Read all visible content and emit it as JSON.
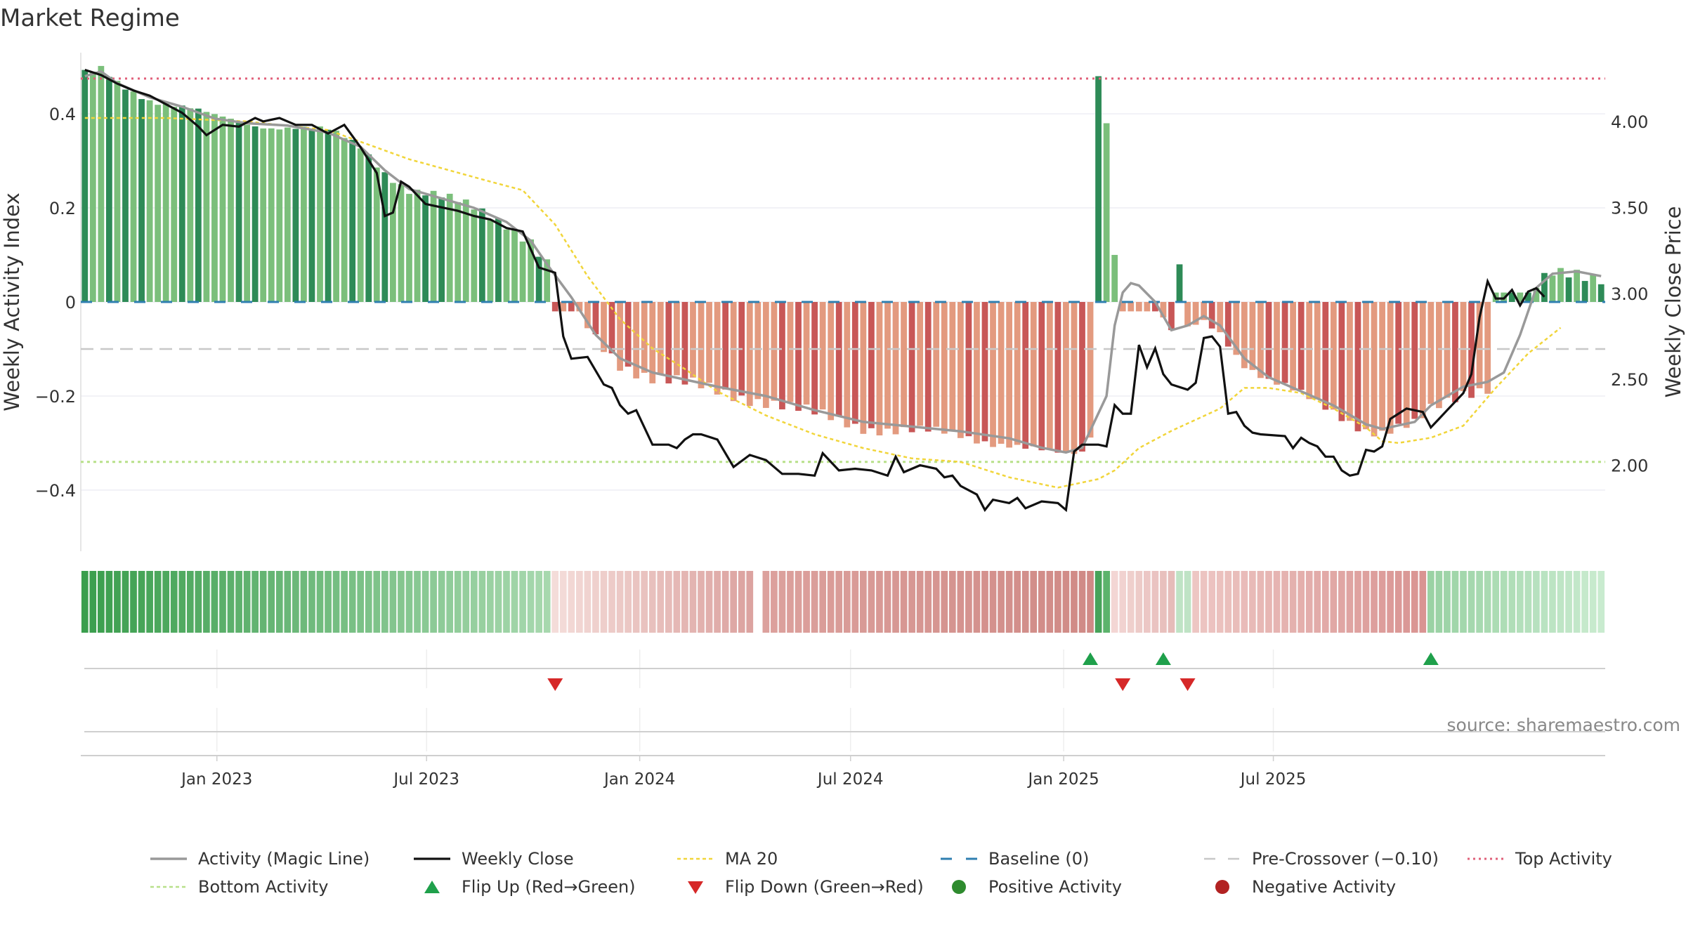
{
  "title": "Market Regime",
  "source": "source: sharemaestro.com",
  "chart_data": {
    "type": "bar",
    "title": "Market Regime",
    "ylabel_left": "Weekly Activity Index",
    "ylabel_right": "Weekly Close Price",
    "ylim_left": [
      -0.53,
      0.53
    ],
    "ylim_right": [
      1.5,
      4.4
    ],
    "yticks_left": [
      0.4,
      0.2,
      0,
      -0.2,
      -0.4
    ],
    "yticks_left_labels": [
      "0.4",
      "0.2",
      "0",
      "−0.2",
      "−0.4"
    ],
    "yticks_right": [
      4.0,
      3.5,
      3.0,
      2.5,
      2.0
    ],
    "yticks_right_labels": [
      "4.00",
      "3.50",
      "3.00",
      "2.50",
      "2.00"
    ],
    "x_range": [
      "2022-09-09",
      "2025-09-19"
    ],
    "xticks": [
      {
        "date": "2023-01-01",
        "label": "Jan 2023"
      },
      {
        "date": "2023-07-01",
        "label": "Jul 2023"
      },
      {
        "date": "2024-01-01",
        "label": "Jan 2024"
      },
      {
        "date": "2024-07-01",
        "label": "Jul 2024"
      },
      {
        "date": "2025-01-01",
        "label": "Jan 2025"
      },
      {
        "date": "2025-07-01",
        "label": "Jul 2025"
      }
    ],
    "reference_lines": {
      "baseline": 0,
      "pre_crossover": -0.1,
      "top_activity": 0.475,
      "bottom_activity": -0.34
    },
    "start_date": "2022-09-09",
    "activity_keypoints": [
      [
        0,
        0.48
      ],
      [
        2,
        0.49
      ],
      [
        4,
        0.465
      ],
      [
        8,
        0.435
      ],
      [
        12,
        0.415
      ],
      [
        16,
        0.39
      ],
      [
        20,
        0.38
      ],
      [
        25,
        0.375
      ],
      [
        30,
        0.36
      ],
      [
        34,
        0.33
      ],
      [
        37,
        0.28
      ],
      [
        40,
        0.24
      ],
      [
        44,
        0.22
      ],
      [
        48,
        0.2
      ],
      [
        52,
        0.17
      ],
      [
        55,
        0.13
      ],
      [
        57,
        0.08
      ],
      [
        60,
        0.01
      ],
      [
        63,
        -0.07
      ],
      [
        66,
        -0.12
      ],
      [
        70,
        -0.15
      ],
      [
        74,
        -0.165
      ],
      [
        78,
        -0.18
      ],
      [
        84,
        -0.2
      ],
      [
        90,
        -0.23
      ],
      [
        96,
        -0.255
      ],
      [
        102,
        -0.265
      ],
      [
        108,
        -0.275
      ],
      [
        114,
        -0.29
      ],
      [
        118,
        -0.31
      ],
      [
        121,
        -0.32
      ],
      [
        123,
        -0.31
      ],
      [
        126,
        -0.2
      ],
      [
        127,
        -0.05
      ],
      [
        128,
        0.02
      ],
      [
        129,
        0.04
      ],
      [
        130,
        0.035
      ],
      [
        132,
        0.0
      ],
      [
        134,
        -0.06
      ],
      [
        136,
        -0.05
      ],
      [
        138,
        -0.03
      ],
      [
        140,
        -0.05
      ],
      [
        143,
        -0.12
      ],
      [
        146,
        -0.16
      ],
      [
        150,
        -0.19
      ],
      [
        154,
        -0.22
      ],
      [
        158,
        -0.26
      ],
      [
        160,
        -0.27
      ],
      [
        164,
        -0.255
      ],
      [
        166,
        -0.22
      ],
      [
        170,
        -0.18
      ],
      [
        173,
        -0.17
      ],
      [
        175,
        -0.15
      ],
      [
        177,
        -0.07
      ],
      [
        179,
        0.03
      ],
      [
        181,
        0.06
      ],
      [
        184,
        0.065
      ],
      [
        187,
        0.055
      ]
    ],
    "close_keypoints": [
      [
        0,
        4.3
      ],
      [
        2,
        4.27
      ],
      [
        4,
        4.22
      ],
      [
        6,
        4.18
      ],
      [
        8,
        4.15
      ],
      [
        10,
        4.1
      ],
      [
        12,
        4.05
      ],
      [
        14,
        3.97
      ],
      [
        15,
        3.92
      ],
      [
        17,
        3.98
      ],
      [
        19,
        3.97
      ],
      [
        21,
        4.02
      ],
      [
        22,
        4.0
      ],
      [
        24,
        4.02
      ],
      [
        26,
        3.98
      ],
      [
        28,
        3.98
      ],
      [
        30,
        3.93
      ],
      [
        32,
        3.98
      ],
      [
        34,
        3.85
      ],
      [
        36,
        3.7
      ],
      [
        37,
        3.45
      ],
      [
        38,
        3.47
      ],
      [
        39,
        3.65
      ],
      [
        40,
        3.62
      ],
      [
        42,
        3.52
      ],
      [
        44,
        3.5
      ],
      [
        46,
        3.48
      ],
      [
        48,
        3.45
      ],
      [
        50,
        3.43
      ],
      [
        52,
        3.38
      ],
      [
        54,
        3.36
      ],
      [
        56,
        3.15
      ],
      [
        58,
        3.12
      ],
      [
        59,
        2.75
      ],
      [
        60,
        2.62
      ],
      [
        62,
        2.63
      ],
      [
        64,
        2.47
      ],
      [
        65,
        2.45
      ],
      [
        66,
        2.35
      ],
      [
        67,
        2.3
      ],
      [
        68,
        2.32
      ],
      [
        70,
        2.12
      ],
      [
        72,
        2.12
      ],
      [
        73,
        2.1
      ],
      [
        74,
        2.15
      ],
      [
        75,
        2.18
      ],
      [
        76,
        2.18
      ],
      [
        78,
        2.15
      ],
      [
        80,
        1.99
      ],
      [
        82,
        2.06
      ],
      [
        84,
        2.03
      ],
      [
        86,
        1.95
      ],
      [
        88,
        1.95
      ],
      [
        90,
        1.94
      ],
      [
        91,
        2.07
      ],
      [
        93,
        1.97
      ],
      [
        95,
        1.98
      ],
      [
        97,
        1.97
      ],
      [
        99,
        1.94
      ],
      [
        100,
        2.05
      ],
      [
        101,
        1.96
      ],
      [
        103,
        2.0
      ],
      [
        105,
        1.98
      ],
      [
        106,
        1.93
      ],
      [
        107,
        1.94
      ],
      [
        108,
        1.88
      ],
      [
        110,
        1.83
      ],
      [
        111,
        1.74
      ],
      [
        112,
        1.8
      ],
      [
        114,
        1.78
      ],
      [
        115,
        1.81
      ],
      [
        116,
        1.75
      ],
      [
        118,
        1.79
      ],
      [
        120,
        1.78
      ],
      [
        121,
        1.74
      ],
      [
        122,
        2.08
      ],
      [
        123,
        2.12
      ],
      [
        125,
        2.12
      ],
      [
        126,
        2.11
      ],
      [
        127,
        2.35
      ],
      [
        128,
        2.3
      ],
      [
        129,
        2.3
      ],
      [
        130,
        2.7
      ],
      [
        131,
        2.57
      ],
      [
        132,
        2.68
      ],
      [
        133,
        2.53
      ],
      [
        134,
        2.47
      ],
      [
        136,
        2.44
      ],
      [
        137,
        2.48
      ],
      [
        138,
        2.74
      ],
      [
        139,
        2.75
      ],
      [
        140,
        2.69
      ],
      [
        141,
        2.3
      ],
      [
        142,
        2.31
      ],
      [
        143,
        2.23
      ],
      [
        144,
        2.19
      ],
      [
        145,
        2.18
      ],
      [
        148,
        2.17
      ],
      [
        149,
        2.1
      ],
      [
        150,
        2.16
      ],
      [
        151,
        2.13
      ],
      [
        152,
        2.11
      ],
      [
        153,
        2.05
      ],
      [
        154,
        2.05
      ],
      [
        155,
        1.97
      ],
      [
        156,
        1.94
      ],
      [
        157,
        1.95
      ],
      [
        158,
        2.09
      ],
      [
        159,
        2.08
      ],
      [
        160,
        2.11
      ],
      [
        161,
        2.27
      ],
      [
        162,
        2.3
      ],
      [
        163,
        2.33
      ],
      [
        165,
        2.31
      ],
      [
        166,
        2.22
      ],
      [
        167,
        2.27
      ],
      [
        168,
        2.32
      ],
      [
        170,
        2.42
      ],
      [
        171,
        2.53
      ],
      [
        172,
        2.86
      ],
      [
        173,
        3.07
      ],
      [
        174,
        2.97
      ],
      [
        175,
        2.97
      ],
      [
        176,
        3.02
      ],
      [
        177,
        2.93
      ],
      [
        178,
        3.01
      ],
      [
        179,
        3.03
      ],
      [
        180,
        2.98
      ]
    ],
    "ma20_keypoints": [
      [
        0,
        4.02
      ],
      [
        10,
        4.02
      ],
      [
        20,
        4.0
      ],
      [
        30,
        3.95
      ],
      [
        40,
        3.78
      ],
      [
        50,
        3.65
      ],
      [
        54,
        3.6
      ],
      [
        58,
        3.4
      ],
      [
        62,
        3.1
      ],
      [
        66,
        2.85
      ],
      [
        70,
        2.68
      ],
      [
        74,
        2.56
      ],
      [
        78,
        2.43
      ],
      [
        84,
        2.29
      ],
      [
        90,
        2.18
      ],
      [
        96,
        2.1
      ],
      [
        102,
        2.04
      ],
      [
        108,
        2.02
      ],
      [
        114,
        1.93
      ],
      [
        120,
        1.87
      ],
      [
        125,
        1.92
      ],
      [
        127,
        1.97
      ],
      [
        130,
        2.1
      ],
      [
        134,
        2.2
      ],
      [
        140,
        2.33
      ],
      [
        143,
        2.45
      ],
      [
        146,
        2.45
      ],
      [
        150,
        2.42
      ],
      [
        154,
        2.33
      ],
      [
        158,
        2.22
      ],
      [
        160,
        2.14
      ],
      [
        162,
        2.13
      ],
      [
        166,
        2.16
      ],
      [
        170,
        2.23
      ],
      [
        174,
        2.45
      ],
      [
        178,
        2.65
      ],
      [
        182,
        2.8
      ]
    ],
    "bars": [
      {
        "from": 0,
        "to": 57,
        "color": "#7bbf7b",
        "dark_color": "#2e8b57",
        "sign": "positive"
      },
      {
        "from": 58,
        "to": 124,
        "color": "#e39a7f",
        "dark_color": "#c85757",
        "sign": "negative"
      },
      {
        "from": 125,
        "to": 125,
        "color": "#2e8b57",
        "sign": "positive",
        "values": [
          0.48
        ]
      },
      {
        "from": 126,
        "to": 126,
        "color": "#7bbf7b",
        "sign": "positive",
        "values": [
          0.38
        ]
      },
      {
        "from": 127,
        "to": 127,
        "color": "#7bbf7b",
        "sign": "positive",
        "values": [
          0.1
        ]
      },
      {
        "from": 128,
        "to": 134,
        "color": "#e39a7f",
        "dark_color": "#c85757",
        "sign": "negative"
      },
      {
        "from": 135,
        "to": 135,
        "color": "#2e8b57",
        "sign": "positive",
        "values": [
          0.08
        ]
      },
      {
        "from": 136,
        "to": 173,
        "color": "#e39a7f",
        "dark_color": "#c85757",
        "sign": "negative"
      },
      {
        "from": 174,
        "to": 187,
        "color": "#7bbf7b",
        "dark_color": "#2e8b57",
        "sign": "positive"
      }
    ],
    "regime_strip": [
      {
        "from": 0,
        "to": 57,
        "color_from": "#3a9e4d",
        "color_to": "#a7d8ae"
      },
      {
        "from": 58,
        "to": 82,
        "color_from": "#f4dcd9",
        "color_to": "#dca3a0"
      },
      {
        "from": 84,
        "to": 124,
        "color_from": "#dca19d",
        "color_to": "#d08a86"
      },
      {
        "from": 125,
        "to": 126,
        "color_from": "#47a35a",
        "color_to": "#5cb36c"
      },
      {
        "from": 127,
        "to": 134,
        "color_from": "#f3d6d4",
        "color_to": "#e6bcb9"
      },
      {
        "from": 135,
        "to": 136,
        "color_from": "#bfe3c5",
        "color_to": "#bfe3c5"
      },
      {
        "from": 137,
        "to": 165,
        "color_from": "#edc6c3",
        "color_to": "#d99492"
      },
      {
        "from": 166,
        "to": 187,
        "color_from": "#9ad2a4",
        "color_to": "#c9ebcf"
      }
    ],
    "flips": [
      {
        "type": "down",
        "index": 58
      },
      {
        "type": "up",
        "index": 124
      },
      {
        "type": "down",
        "index": 128
      },
      {
        "type": "up",
        "index": 133
      },
      {
        "type": "down",
        "index": 136
      },
      {
        "type": "up",
        "index": 166
      }
    ],
    "colors": {
      "activity": "#999999",
      "close": "#111111",
      "ma20": "#f1d53a",
      "baseline": "#2f7fb0",
      "pre_crossover": "#c8c8c8",
      "top_activity": "#e0607a",
      "bottom_activity": "#b8e08a",
      "flip_up": "#1fa04b",
      "flip_down": "#d62828",
      "positive": "#2e8b2e",
      "negative": "#b22222"
    }
  },
  "legend": [
    {
      "label": "Activity (Magic Line)",
      "key": "activity"
    },
    {
      "label": "Weekly Close",
      "key": "close"
    },
    {
      "label": "MA 20",
      "key": "ma20"
    },
    {
      "label": "Baseline (0)",
      "key": "baseline"
    },
    {
      "label": "Pre-Crossover (−0.10)",
      "key": "pre_crossover"
    },
    {
      "label": "Top Activity",
      "key": "top_activity"
    },
    {
      "label": "Bottom Activity",
      "key": "bottom_activity"
    },
    {
      "label": "Flip Up (Red→Green)",
      "key": "flip_up"
    },
    {
      "label": "Flip Down (Green→Red)",
      "key": "flip_down"
    },
    {
      "label": "Positive Activity",
      "key": "positive"
    },
    {
      "label": "Negative Activity",
      "key": "negative"
    }
  ]
}
